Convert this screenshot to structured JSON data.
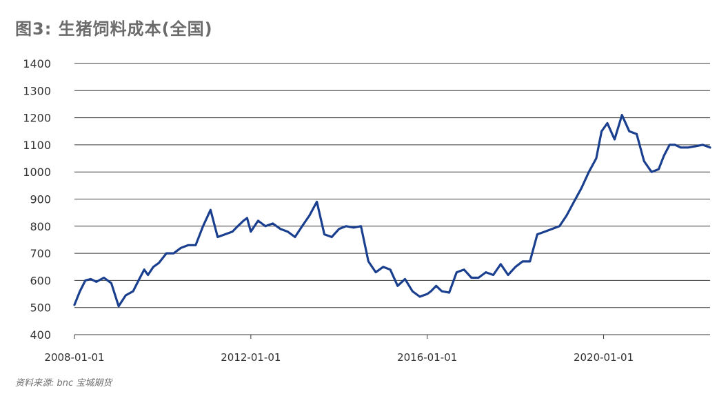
{
  "header": {
    "title": "图3: 生猪饲料成本(全国)"
  },
  "footer": {
    "source": "资料来源: bnc 宝城期货"
  },
  "colors": {
    "line": "#1a3f8f",
    "grid": "#3a3a3a",
    "text": "#333333"
  },
  "chart_data": {
    "type": "line",
    "title": "图3: 生猪饲料成本(全国)",
    "xlabel": "",
    "ylabel": "",
    "ylim": [
      400,
      1400
    ],
    "yticks": [
      400,
      500,
      600,
      700,
      800,
      900,
      1000,
      1100,
      1200,
      1300,
      1400
    ],
    "ytick_labels": [
      "400",
      "500",
      "600",
      "700",
      "800",
      "900",
      "1000",
      "1100",
      "1200",
      "1300",
      "1400"
    ],
    "xlim": [
      "2008-01-01",
      "2022-06-01"
    ],
    "xticks": [
      "2008-01-01",
      "2012-01-01",
      "2016-01-01",
      "2020-01-01"
    ],
    "xtick_labels": [
      "2008-01-01",
      "2012-01-01",
      "2016-01-01",
      "2020-01-01"
    ],
    "grid": "horizontal",
    "legend": "none",
    "series": [
      {
        "x": [
          "2008-01-01",
          "2008-02-15",
          "2008-04-01",
          "2008-05-15",
          "2008-07-01",
          "2008-09-01",
          "2008-11-01",
          "2009-01-01",
          "2009-03-01",
          "2009-05-01",
          "2009-06-15",
          "2009-08-01",
          "2009-09-01",
          "2009-10-15",
          "2009-12-01",
          "2010-02-01",
          "2010-04-01",
          "2010-06-01",
          "2010-08-01",
          "2010-10-01",
          "2010-12-01",
          "2011-02-01",
          "2011-04-01",
          "2011-06-01",
          "2011-08-01",
          "2011-09-15",
          "2011-11-01",
          "2011-12-01",
          "2012-01-01",
          "2012-03-01",
          "2012-05-01",
          "2012-07-01",
          "2012-09-01",
          "2012-11-01",
          "2013-01-01",
          "2013-03-01",
          "2013-05-01",
          "2013-07-01",
          "2013-09-01",
          "2013-11-01",
          "2014-01-01",
          "2014-03-01",
          "2014-05-01",
          "2014-07-01",
          "2014-09-01",
          "2014-11-01",
          "2015-01-01",
          "2015-03-01",
          "2015-05-01",
          "2015-07-01",
          "2015-09-01",
          "2015-11-01",
          "2015-12-01",
          "2016-01-01",
          "2016-02-01",
          "2016-03-15",
          "2016-05-01",
          "2016-07-01",
          "2016-09-01",
          "2016-11-01",
          "2017-01-01",
          "2017-03-01",
          "2017-05-01",
          "2017-07-01",
          "2017-09-01",
          "2017-11-01",
          "2018-01-01",
          "2018-03-01",
          "2018-05-01",
          "2018-07-01",
          "2018-09-01",
          "2018-11-01",
          "2019-01-01",
          "2019-03-01",
          "2019-05-01",
          "2019-07-01",
          "2019-09-01",
          "2019-11-01",
          "2019-12-15",
          "2020-02-01",
          "2020-04-01",
          "2020-06-01",
          "2020-08-01",
          "2020-10-01",
          "2020-12-01",
          "2021-02-01",
          "2021-04-01",
          "2021-05-15",
          "2021-07-01",
          "2021-08-15",
          "2021-10-01",
          "2021-12-01",
          "2022-02-01",
          "2022-04-01",
          "2022-06-01"
        ],
        "y": [
          510,
          560,
          600,
          605,
          595,
          610,
          590,
          505,
          545,
          560,
          600,
          640,
          620,
          650,
          665,
          700,
          700,
          720,
          730,
          730,
          800,
          860,
          760,
          770,
          780,
          800,
          820,
          830,
          780,
          820,
          800,
          810,
          790,
          780,
          760,
          800,
          840,
          890,
          770,
          760,
          790,
          800,
          795,
          800,
          670,
          630,
          650,
          640,
          580,
          605,
          560,
          540,
          545,
          550,
          560,
          580,
          560,
          555,
          630,
          640,
          610,
          610,
          630,
          620,
          660,
          620,
          650,
          670,
          670,
          770,
          780,
          790,
          800,
          840,
          890,
          940,
          1000,
          1050,
          1150,
          1180,
          1120,
          1210,
          1150,
          1140,
          1040,
          1000,
          1010,
          1060,
          1100,
          1100,
          1090,
          1090,
          1095,
          1100,
          1090
        ],
        "values_note": ""
      }
    ]
  }
}
